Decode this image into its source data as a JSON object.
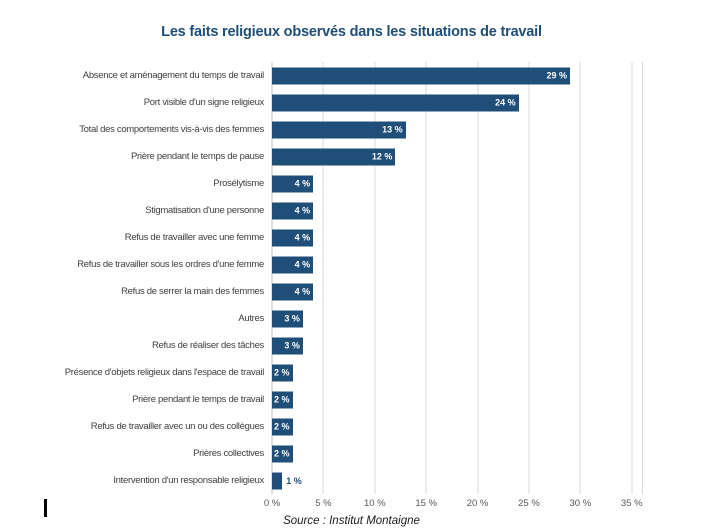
{
  "title": "Les faits religieux observés dans les situations de travail",
  "source": "Source : Institut Montaigne",
  "colors": {
    "bar": "#1f4e79",
    "title": "#1f4e79",
    "grid": "#d9d9d9",
    "axis_line": "#bfbfbf",
    "category_label": "#404040",
    "tick_label": "#595959",
    "value_inside": "#ffffff",
    "value_outside": "#1f4e79"
  },
  "chart_data": {
    "type": "bar",
    "orientation": "horizontal",
    "title": "Les faits religieux observés dans les situations de travail",
    "categories": [
      "Absence et aménagement du temps de travail",
      "Port visible d'un signe religieux",
      "Total des comportements vis-à-vis des femmes",
      "Prière pendant le temps de pause",
      "Prosélytisme",
      "Stigmatisation d'une personne",
      "Refus de travailler avec une femme",
      "Refus de travailler sous les ordres d'une femme",
      "Refus de serrer la main des femmes",
      "Autres",
      "Refus de réaliser des tâches",
      "Présence d'objets religieux dans l'espace de travail",
      "Prière pendant le temps de travail",
      "Refus de travailler avec un ou des collègues",
      "Prières collectives",
      "Intervention d'un responsable religieux"
    ],
    "values": [
      29,
      24,
      13,
      12,
      4,
      4,
      4,
      4,
      4,
      3,
      3,
      2,
      2,
      2,
      2,
      1
    ],
    "unit": "%",
    "x_ticks": [
      0,
      5,
      10,
      15,
      20,
      25,
      30,
      35
    ],
    "x_tick_labels": [
      "0 %",
      "5 %",
      "10 %",
      "15 %",
      "20 %",
      "25 %",
      "30 %",
      "35 %"
    ],
    "xlim": [
      0,
      36
    ],
    "grid": true,
    "legend": false,
    "value_labels": true
  }
}
